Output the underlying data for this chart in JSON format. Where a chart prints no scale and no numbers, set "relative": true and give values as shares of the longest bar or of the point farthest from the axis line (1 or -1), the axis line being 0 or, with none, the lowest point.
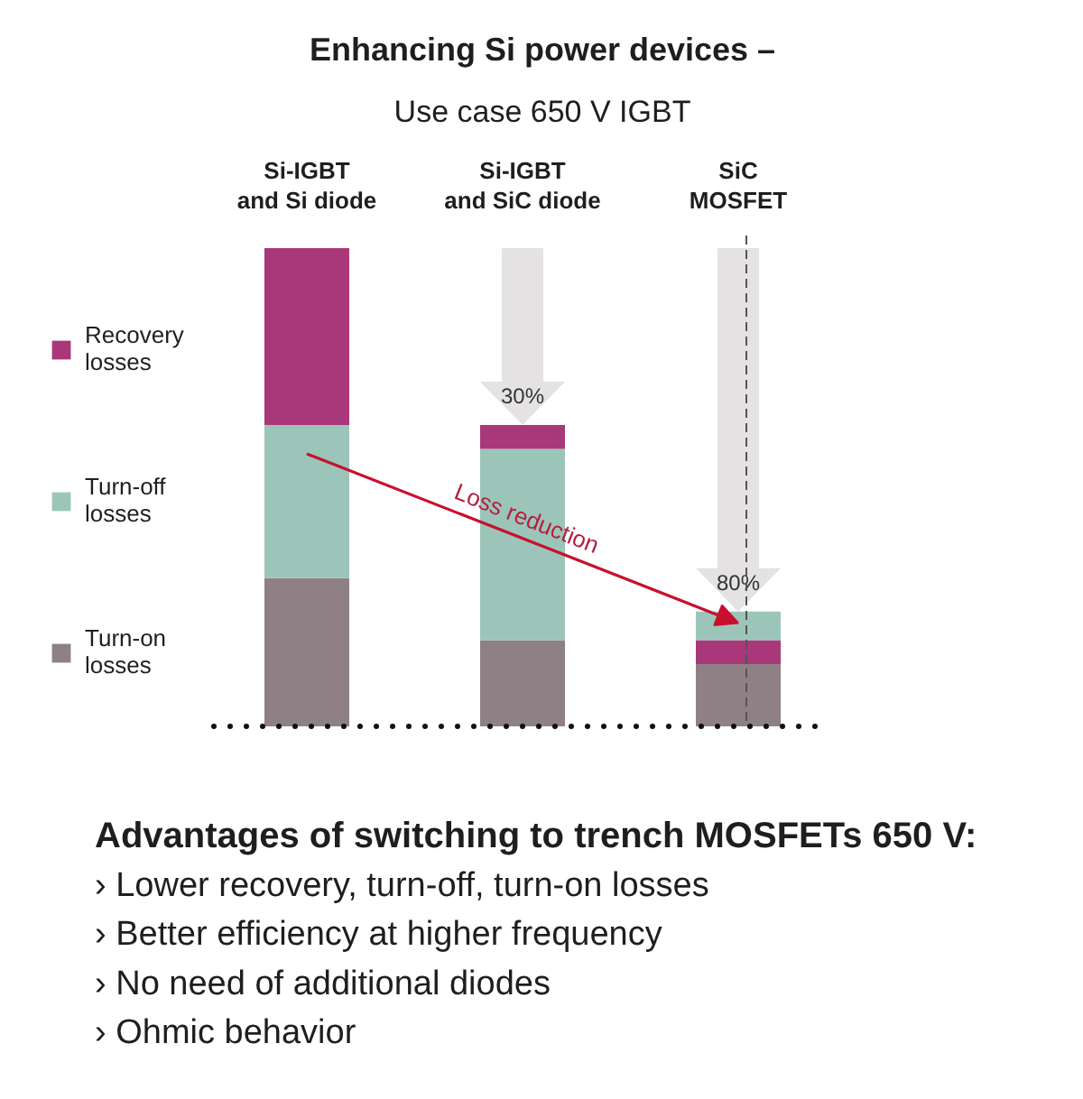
{
  "chart_data": {
    "type": "bar",
    "title": "Enhancing Si power devices –",
    "subtitle": "Use case 650 V IGBT",
    "categories": [
      "Si-IGBT\nand Si diode",
      "Si-IGBT\nand SiC diode",
      "SiC\nMOSFET"
    ],
    "stacked": true,
    "relative": true,
    "legend": "left",
    "series": [
      {
        "name": "Turn-on\nlosses",
        "color": "#8e8084",
        "values": [
          0.31,
          0.18,
          0.13
        ]
      },
      {
        "color": "#a8387a",
        "values": [
          null,
          null,
          0.05
        ]
      },
      {
        "name": "Turn-off\nlosses",
        "color": "#9cc5b9",
        "values": [
          0.32,
          0.4,
          0.06
        ]
      },
      {
        "name": "Recovery\nlosses",
        "color": "#a8387a",
        "values": [
          0.37,
          0.05,
          null
        ]
      }
    ],
    "ref_lines": [
      {
        "axis": "x",
        "value": "SiC\nMOSFET",
        "color": "#555555",
        "line_style": "dashed"
      }
    ],
    "annotations": [
      {
        "text": "30%",
        "x": "Si-IGBT\nand SiC diode",
        "y": 0.63
      },
      {
        "text": "80%",
        "x": "SiC\nMOSFET",
        "y": 0.24
      },
      "Loss reduction",
      "Advantages of switching to trench MOSFETs 650 V:",
      "› Lower recovery, turn-off, turn-on losses",
      "› Better efficiency at higher frequency",
      "› No need of additional diodes",
      "› Ohmic behavior"
    ]
  }
}
